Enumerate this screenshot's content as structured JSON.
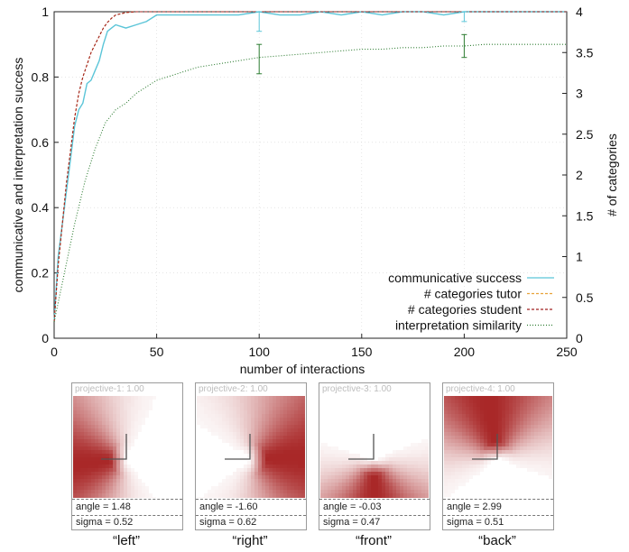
{
  "chart_data": {
    "type": "line",
    "xlabel": "number of interactions",
    "ylabel_left": "communicative and interpretation success",
    "ylabel_right": "# of categories",
    "xlim": [
      0,
      250
    ],
    "ylim_left": [
      0,
      1
    ],
    "ylim_right": [
      0,
      4
    ],
    "x_ticks": [
      "0",
      "50",
      "100",
      "150",
      "200",
      "250"
    ],
    "y_left_ticks": [
      "0",
      "0.2",
      "0.4",
      "0.6",
      "0.8",
      "1"
    ],
    "y_right_ticks": [
      "0",
      "0.5",
      "1",
      "1.5",
      "2",
      "2.5",
      "3",
      "3.5",
      "4"
    ],
    "grid": true,
    "legend_position": "bottom-right",
    "series": [
      {
        "name": "communicative success",
        "axis": "left",
        "color": "#5bc5d8",
        "style": "solid",
        "x": [
          0,
          2,
          4,
          6,
          8,
          10,
          12,
          14,
          16,
          18,
          20,
          22,
          24,
          26,
          28,
          30,
          35,
          40,
          45,
          50,
          55,
          60,
          70,
          80,
          90,
          100,
          110,
          120,
          130,
          140,
          150,
          160,
          170,
          180,
          190,
          200,
          210,
          220,
          230,
          240,
          250
        ],
        "y": [
          0.05,
          0.25,
          0.35,
          0.45,
          0.55,
          0.65,
          0.7,
          0.72,
          0.78,
          0.79,
          0.82,
          0.85,
          0.9,
          0.94,
          0.95,
          0.96,
          0.95,
          0.96,
          0.97,
          0.99,
          0.99,
          0.99,
          0.99,
          0.99,
          0.99,
          1.0,
          0.99,
          0.99,
          1.0,
          0.99,
          1.0,
          0.99,
          1.0,
          1.0,
          0.99,
          1.0,
          1.0,
          1.0,
          1.0,
          1.0,
          1.0
        ],
        "error_bars": [
          {
            "x": 100,
            "low": 0.94,
            "high": 1.0
          },
          {
            "x": 200,
            "low": 0.97,
            "high": 1.0
          }
        ]
      },
      {
        "name": "# categories tutor",
        "axis": "right",
        "color": "#e8a23a",
        "style": "dashed",
        "x": [
          0,
          2,
          4,
          6,
          8,
          10,
          12,
          14,
          16,
          18,
          20,
          22,
          24,
          26,
          28,
          30,
          35,
          40,
          50,
          60,
          100,
          150,
          200,
          250
        ],
        "y": [
          0.2,
          0.9,
          1.4,
          1.9,
          2.3,
          2.7,
          3.0,
          3.2,
          3.35,
          3.5,
          3.6,
          3.7,
          3.8,
          3.87,
          3.92,
          3.96,
          3.99,
          4.0,
          4.0,
          4.0,
          4.0,
          4.0,
          4.0,
          4.0
        ]
      },
      {
        "name": "# categories student",
        "axis": "right",
        "color": "#a02020",
        "style": "dashed",
        "x": [
          0,
          2,
          4,
          6,
          8,
          10,
          12,
          14,
          16,
          18,
          20,
          22,
          24,
          26,
          28,
          30,
          35,
          40,
          50,
          60,
          100,
          150,
          200,
          250
        ],
        "y": [
          0.2,
          0.9,
          1.4,
          1.9,
          2.3,
          2.7,
          3.0,
          3.2,
          3.35,
          3.5,
          3.6,
          3.7,
          3.8,
          3.87,
          3.92,
          3.96,
          3.99,
          4.0,
          4.0,
          4.0,
          4.0,
          4.0,
          4.0,
          4.0
        ]
      },
      {
        "name": "interpretation similarity",
        "axis": "left",
        "color": "#2e7d32",
        "style": "dotted",
        "x": [
          0,
          5,
          10,
          15,
          20,
          25,
          30,
          35,
          40,
          50,
          60,
          70,
          80,
          90,
          100,
          110,
          120,
          130,
          140,
          150,
          160,
          170,
          180,
          190,
          200,
          210,
          220,
          230,
          240,
          250
        ],
        "y": [
          0.05,
          0.2,
          0.35,
          0.48,
          0.58,
          0.66,
          0.7,
          0.72,
          0.75,
          0.79,
          0.81,
          0.83,
          0.84,
          0.85,
          0.86,
          0.865,
          0.87,
          0.875,
          0.88,
          0.885,
          0.885,
          0.89,
          0.89,
          0.895,
          0.895,
          0.9,
          0.9,
          0.9,
          0.9,
          0.9
        ],
        "error_bars": [
          {
            "x": 100,
            "low": 0.81,
            "high": 0.9
          },
          {
            "x": 200,
            "low": 0.86,
            "high": 0.93
          }
        ]
      }
    ]
  },
  "panels": [
    {
      "title": "projective-1: 1.00",
      "angle_text": "angle = 1.48",
      "sigma_text": "sigma = 0.52",
      "caption": "“left”",
      "angle": 1.48,
      "sigma": 0.52
    },
    {
      "title": "projective-2: 1.00",
      "angle_text": "angle = -1.60",
      "sigma_text": "sigma = 0.62",
      "caption": "“right”",
      "angle": -1.6,
      "sigma": 0.62
    },
    {
      "title": "projective-3: 1.00",
      "angle_text": "angle = -0.03",
      "sigma_text": "sigma = 0.47",
      "caption": "“front”",
      "angle": -0.03,
      "sigma": 0.47
    },
    {
      "title": "projective-4: 1.00",
      "angle_text": "angle = 2.99",
      "sigma_text": "sigma = 0.51",
      "caption": "“back”",
      "angle": 2.99,
      "sigma": 0.51
    }
  ],
  "colors": {
    "heat": "#a41c1c",
    "grid": "#d6d6d6"
  }
}
